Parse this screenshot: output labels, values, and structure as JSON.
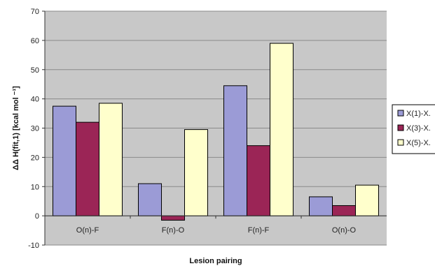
{
  "chart_data": {
    "type": "bar",
    "title": "",
    "xlabel": "Lesion pairing",
    "ylabel": "ΔΔ H(fit,1)  [kcal mol ⁻¹]",
    "categories": [
      "O(n)-F",
      "F(n)-O",
      "F(n)-F",
      "O(n)-O"
    ],
    "series": [
      {
        "name": "X(1)-X.",
        "values": [
          37.5,
          11,
          44.5,
          6.5
        ],
        "color": "#9b9bd6"
      },
      {
        "name": "X(3)-X.",
        "values": [
          32,
          -1.5,
          24,
          3.5
        ],
        "color": "#9b2556"
      },
      {
        "name": "X(5)-X.",
        "values": [
          38.5,
          29.5,
          59,
          10.5
        ],
        "color": "#ffffcc"
      }
    ],
    "ylim": [
      -10,
      70
    ],
    "yticks": [
      -10,
      0,
      10,
      20,
      30,
      40,
      50,
      60,
      70
    ],
    "grid": true,
    "legend_position": "right",
    "plot_background": "#c8c8c8"
  }
}
